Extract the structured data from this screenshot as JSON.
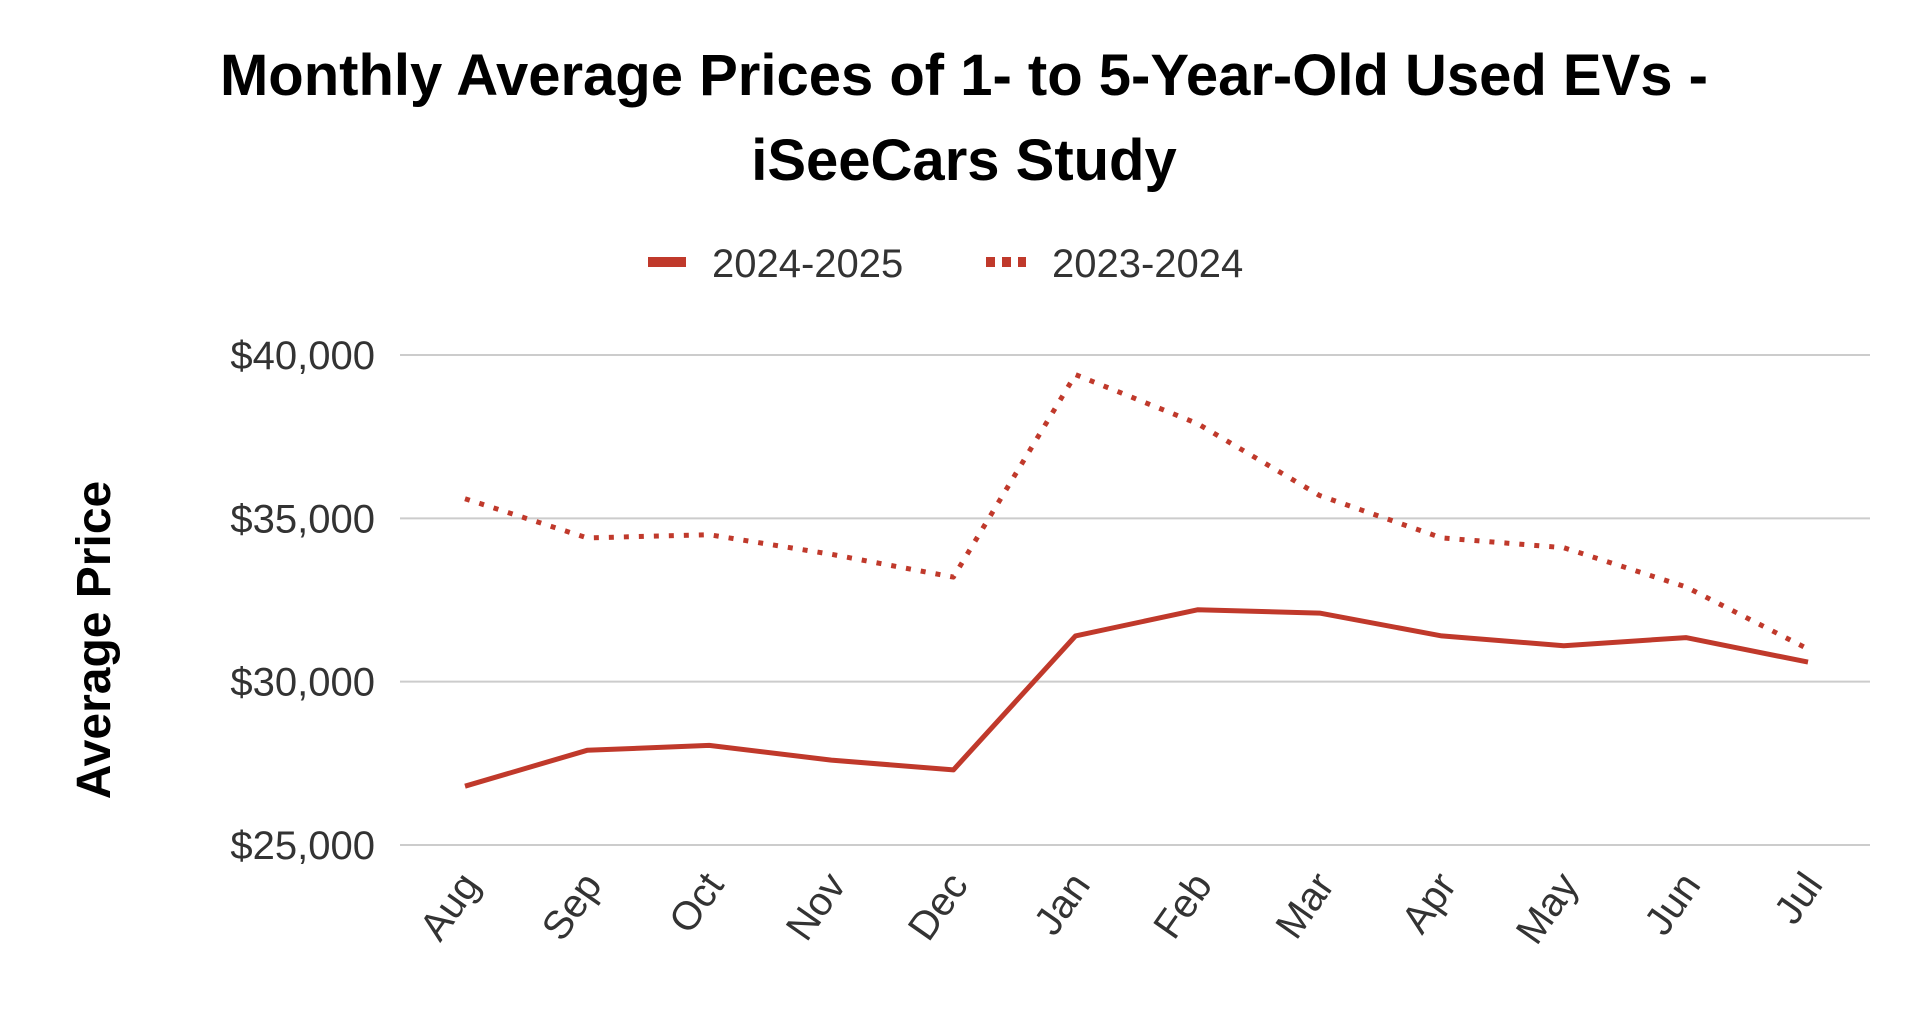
{
  "chart_data": {
    "type": "line",
    "title_lines": [
      "Monthly Average Prices of 1- to 5-Year-Old Used EVs -",
      "iSeeCars Study"
    ],
    "ylabel": "Average Price",
    "xlabel": "",
    "categories": [
      "Aug",
      "Sep",
      "Oct",
      "Nov",
      "Dec",
      "Jan",
      "Feb",
      "Mar",
      "Apr",
      "May",
      "Jun",
      "Jul"
    ],
    "ylim": [
      25000,
      40000
    ],
    "yticks": [
      25000,
      30000,
      35000,
      40000
    ],
    "ytick_labels": [
      "$25,000",
      "$30,000",
      "$35,000",
      "$40,000"
    ],
    "grid": true,
    "legend_position": "top",
    "series": [
      {
        "name": "2024-2025",
        "style": "solid",
        "color": "#c0392b",
        "values": [
          26800,
          27900,
          28050,
          27600,
          27300,
          31400,
          32200,
          32100,
          31400,
          31100,
          31350,
          30600
        ]
      },
      {
        "name": "2023-2024",
        "style": "dotted",
        "color": "#c0392b",
        "values": [
          35600,
          34400,
          34500,
          33900,
          33200,
          39400,
          37900,
          35700,
          34400,
          34100,
          32900,
          31000
        ]
      }
    ]
  }
}
